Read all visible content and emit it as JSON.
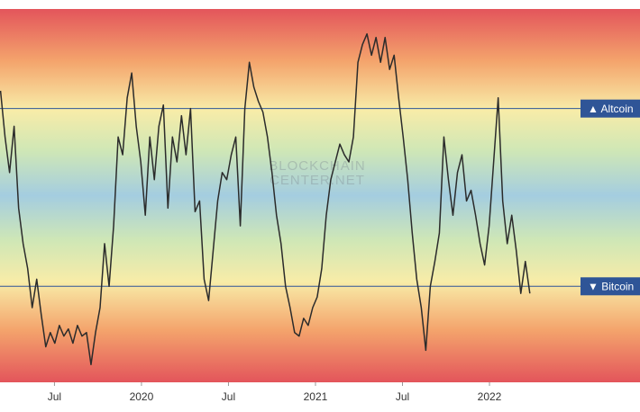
{
  "chart_data": {
    "type": "line",
    "x": [
      2019.19,
      2019.216,
      2019.242,
      2019.268,
      2019.294,
      2019.32,
      2019.346,
      2019.372,
      2019.398,
      2019.424,
      2019.45,
      2019.476,
      2019.502,
      2019.528,
      2019.554,
      2019.58,
      2019.606,
      2019.632,
      2019.658,
      2019.684,
      2019.71,
      2019.736,
      2019.762,
      2019.788,
      2019.814,
      2019.84,
      2019.866,
      2019.892,
      2019.918,
      2019.944,
      2019.97,
      2019.996,
      2020.022,
      2020.048,
      2020.074,
      2020.1,
      2020.126,
      2020.152,
      2020.178,
      2020.204,
      2020.23,
      2020.256,
      2020.282,
      2020.308,
      2020.334,
      2020.36,
      2020.386,
      2020.412,
      2020.438,
      2020.464,
      2020.49,
      2020.516,
      2020.542,
      2020.568,
      2020.594,
      2020.62,
      2020.646,
      2020.672,
      2020.698,
      2020.724,
      2020.75,
      2020.776,
      2020.802,
      2020.828,
      2020.854,
      2020.88,
      2020.906,
      2020.932,
      2020.958,
      2020.984,
      2021.01,
      2021.036,
      2021.062,
      2021.088,
      2021.114,
      2021.14,
      2021.166,
      2021.192,
      2021.218,
      2021.244,
      2021.27,
      2021.296,
      2021.322,
      2021.348,
      2021.374,
      2021.4,
      2021.426,
      2021.452,
      2021.478,
      2021.504,
      2021.53,
      2021.556,
      2021.582,
      2021.608,
      2021.634,
      2021.66,
      2021.686,
      2021.712,
      2021.738,
      2021.764,
      2021.79,
      2021.816,
      2021.842,
      2021.868,
      2021.894,
      2021.92,
      2021.946,
      2021.972,
      2021.998,
      2022.024,
      2022.05,
      2022.076,
      2022.102,
      2022.128,
      2022.154,
      2022.18,
      2022.206,
      2022.232
    ],
    "series": [
      {
        "color": "#2b2b2b",
        "values": [
          80,
          67,
          57,
          70,
          47,
          37,
          30,
          19,
          27,
          17,
          8,
          12,
          9,
          14,
          11,
          13,
          9,
          14,
          11,
          12,
          3,
          12,
          19,
          37,
          25,
          42,
          67,
          62,
          78,
          85,
          70,
          60,
          45,
          67,
          55,
          70,
          76,
          47,
          67,
          60,
          73,
          62,
          75,
          46,
          49,
          27,
          21,
          35,
          49,
          57,
          55,
          62,
          67,
          42,
          75,
          88,
          81,
          77,
          74,
          67,
          57,
          45,
          37,
          25,
          19,
          12,
          11,
          16,
          14,
          19,
          22,
          30,
          45,
          55,
          60,
          65,
          62,
          60,
          67,
          88,
          93,
          96,
          90,
          95,
          88,
          95,
          86,
          90,
          78,
          67,
          55,
          40,
          27,
          19,
          7,
          25,
          32,
          40,
          67,
          55,
          45,
          57,
          62,
          49,
          52,
          45,
          37,
          31,
          42,
          60,
          78,
          49,
          37,
          45,
          35,
          23,
          32,
          23
        ]
      }
    ],
    "xlim": [
      2019.187,
      2022.865
    ],
    "xticks": [
      {
        "value": 2019.5,
        "label": "Jul"
      },
      2020,
      {
        "value": 2020.5,
        "label": "Jul"
      },
      2021,
      {
        "value": 2021.5,
        "label": "Jul"
      },
      2022
    ],
    "ylim": [
      -2,
      103
    ],
    "levels": [
      {
        "value": 75,
        "label": "▲ Altcoin"
      },
      {
        "value": 25,
        "label": "▼ Bitcoin"
      }
    ],
    "level_color": "#2f5597",
    "watermark": [
      "BLOCKCHAIN",
      "CENTER.NET"
    ]
  }
}
